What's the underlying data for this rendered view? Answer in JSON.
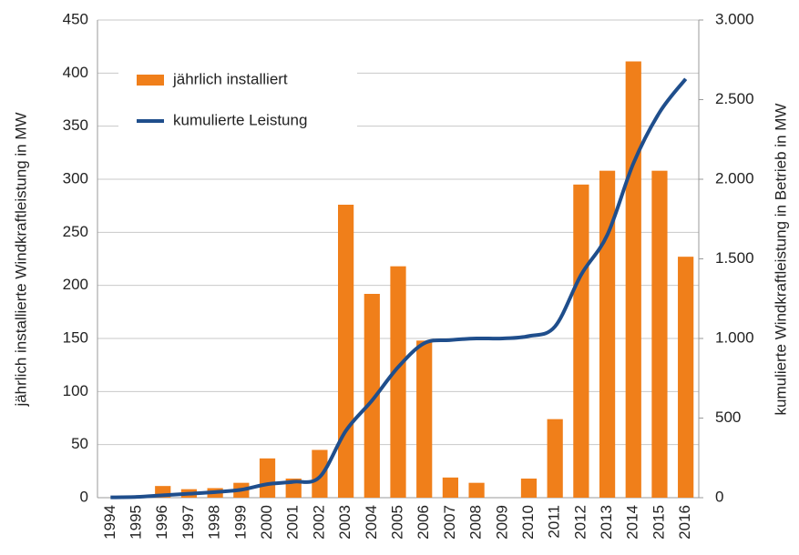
{
  "chart_data": {
    "type": "bar_line",
    "y_label": "jährlich installierte Windkraftleistung in MW",
    "y2_label": "kumulierte Windkraftleistung in Betrieb in MW",
    "categories": [
      "1994",
      "1995",
      "1996",
      "1997",
      "1998",
      "1999",
      "2000",
      "2001",
      "2002",
      "2003",
      "2004",
      "2005",
      "2006",
      "2007",
      "2008",
      "2009",
      "2010",
      "2011",
      "2012",
      "2013",
      "2014",
      "2015",
      "2016"
    ],
    "series": [
      {
        "name": "jährlich installiert",
        "type": "bar",
        "color": "#f07f1a",
        "values": [
          0,
          0,
          11,
          8,
          9,
          14,
          37,
          18,
          45,
          276,
          192,
          218,
          148,
          19,
          14,
          0,
          18,
          74,
          295,
          308,
          411,
          308,
          227
        ]
      },
      {
        "name": "kumulierte Leistung",
        "type": "line",
        "axis": "y2",
        "color": "#1f4e8c",
        "values": [
          2,
          5,
          15,
          25,
          35,
          50,
          85,
          100,
          130,
          420,
          610,
          820,
          970,
          990,
          1000,
          1000,
          1015,
          1075,
          1400,
          1650,
          2100,
          2420,
          2630
        ]
      }
    ],
    "ylim": [
      0,
      450
    ],
    "yticks": [
      0,
      50,
      100,
      150,
      200,
      250,
      300,
      350,
      400,
      450
    ],
    "y2lim": [
      0,
      3000
    ],
    "y2ticks": [
      0,
      500,
      {
        "value": 1000,
        "label": "1.000"
      },
      {
        "value": 1500,
        "label": "1.500"
      },
      {
        "value": 2000,
        "label": "2.000"
      },
      {
        "value": 2500,
        "label": "2.500"
      },
      {
        "value": 3000,
        "label": "3.000"
      }
    ],
    "grid": true,
    "legend": "upper left"
  }
}
